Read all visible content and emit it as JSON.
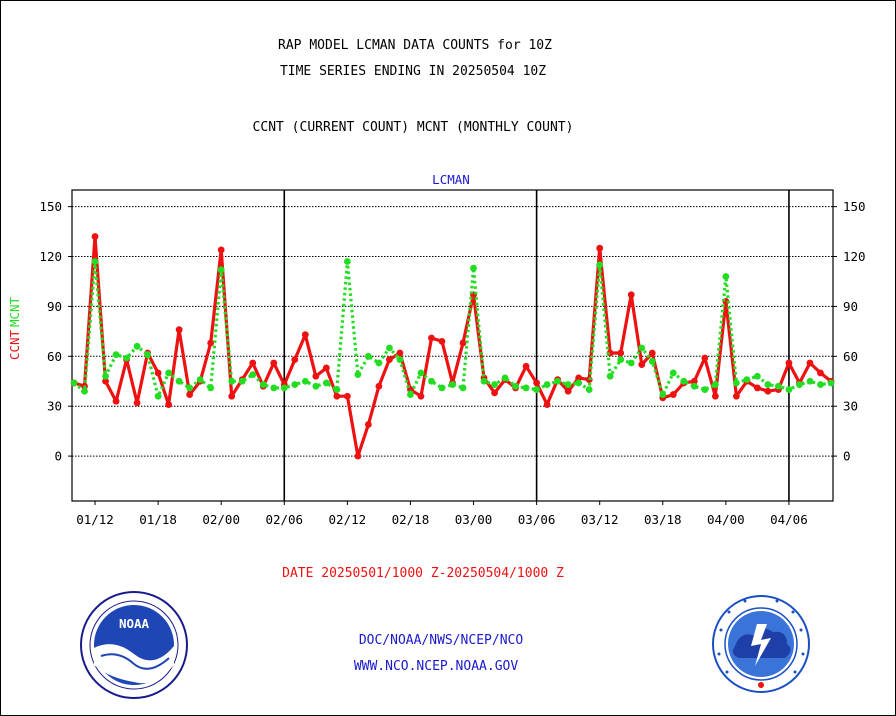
{
  "header": {
    "title1": "RAP MODEL LCMAN DATA COUNTS for 10Z",
    "title2": "TIME SERIES ENDING IN 20250504 10Z",
    "subtitle": "CCNT (CURRENT COUNT) MCNT (MONTHLY COUNT)"
  },
  "footer": {
    "date_range": "DATE 20250501/1000 Z-20250504/1000 Z",
    "org": "DOC/NOAA/NWS/NCEP/NCO",
    "url": "WWW.NCO.NCEP.NOAA.GOV",
    "noaa_logo_text": "NOAA"
  },
  "colors": {
    "ccnt": "#ee1111",
    "mcnt": "#22dd22",
    "text_blue": "#1a1acc",
    "text_red": "#ee1111"
  },
  "chart_data": {
    "type": "line",
    "title": "LCMAN",
    "ylabel_ccnt": "CCNT",
    "ylabel_mcnt": "MCNT",
    "ylim": [
      -27,
      160
    ],
    "yticks": [
      0,
      30,
      60,
      90,
      120,
      150
    ],
    "xtick_labels": [
      "01/12",
      "01/18",
      "02/00",
      "02/06",
      "02/12",
      "02/18",
      "03/00",
      "03/06",
      "03/12",
      "03/18",
      "04/00",
      "04/06"
    ],
    "xtick_index": [
      2,
      8,
      14,
      20,
      26,
      32,
      38,
      44,
      50,
      56,
      62,
      68
    ],
    "day_boundaries_index": [
      20,
      44,
      68
    ],
    "series": [
      {
        "name": "CCNT",
        "style": "solid",
        "values": [
          44,
          42,
          132,
          45,
          33,
          58,
          32,
          62,
          50,
          31,
          76,
          37,
          45,
          68,
          124,
          36,
          46,
          56,
          42,
          56,
          43,
          58,
          73,
          48,
          53,
          36,
          36,
          0,
          19,
          42,
          58,
          62,
          40,
          36,
          71,
          69,
          44,
          68,
          97,
          47,
          38,
          46,
          41,
          54,
          44,
          31,
          46,
          39,
          47,
          46,
          125,
          62,
          62,
          97,
          55,
          62,
          35,
          37,
          44,
          45,
          59,
          36,
          93,
          36,
          45,
          41,
          39,
          40,
          56,
          44,
          56,
          50,
          45
        ]
      },
      {
        "name": "MCNT",
        "style": "dotted",
        "values": [
          44,
          39,
          117,
          48,
          61,
          59,
          66,
          61,
          36,
          50,
          45,
          41,
          46,
          41,
          112,
          45,
          45,
          49,
          43,
          41,
          41,
          43,
          45,
          42,
          44,
          40,
          117,
          49,
          60,
          56,
          65,
          58,
          37,
          50,
          45,
          41,
          43,
          41,
          113,
          45,
          43,
          47,
          42,
          41,
          40,
          43,
          45,
          43,
          44,
          40,
          115,
          48,
          58,
          56,
          65,
          57,
          37,
          50,
          45,
          42,
          40,
          43,
          108,
          44,
          46,
          48,
          43,
          42,
          40,
          43,
          45,
          43,
          44
        ]
      }
    ]
  }
}
